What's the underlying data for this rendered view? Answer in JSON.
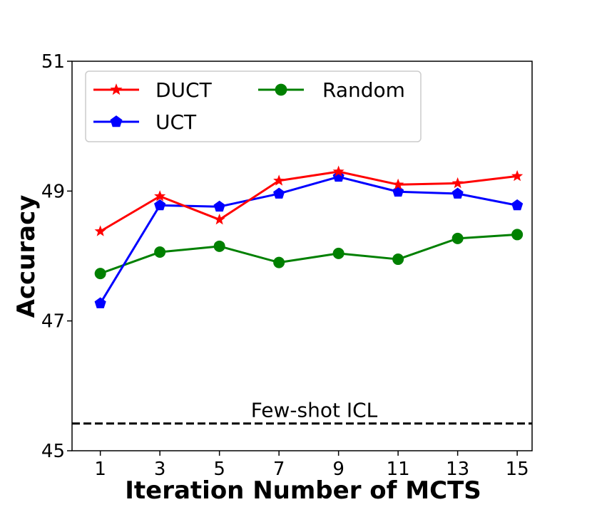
{
  "chart_data": {
    "type": "line",
    "title": "",
    "xlabel": "Iteration Number of MCTS",
    "ylabel": "Accuracy",
    "x": [
      1,
      3,
      5,
      7,
      9,
      11,
      13,
      15
    ],
    "xticks": [
      "1",
      "3",
      "5",
      "7",
      "9",
      "11",
      "13",
      "15"
    ],
    "yticks": [
      "45",
      "47",
      "49",
      "51"
    ],
    "ytick_values": [
      45,
      47,
      49,
      51
    ],
    "xlim": [
      0.05,
      15.5
    ],
    "ylim": [
      45,
      51
    ],
    "series": [
      {
        "name": "DUCT",
        "color": "#ff0000",
        "marker": "star",
        "values": [
          48.38,
          48.92,
          48.56,
          49.16,
          49.3,
          49.1,
          49.12,
          49.23
        ]
      },
      {
        "name": "UCT",
        "color": "#0000ff",
        "marker": "pentagon",
        "values": [
          47.27,
          48.78,
          48.76,
          48.96,
          49.22,
          48.99,
          48.96,
          48.78
        ]
      },
      {
        "name": "Random",
        "color": "#008000",
        "marker": "circle",
        "values": [
          47.73,
          48.06,
          48.15,
          47.9,
          48.04,
          47.95,
          48.27,
          48.33
        ]
      }
    ],
    "reference_line": {
      "label": "Few-shot ICL",
      "value": 45.42,
      "style": "dashed",
      "color": "#000000"
    },
    "legend_position": "top-left",
    "grid": false
  }
}
